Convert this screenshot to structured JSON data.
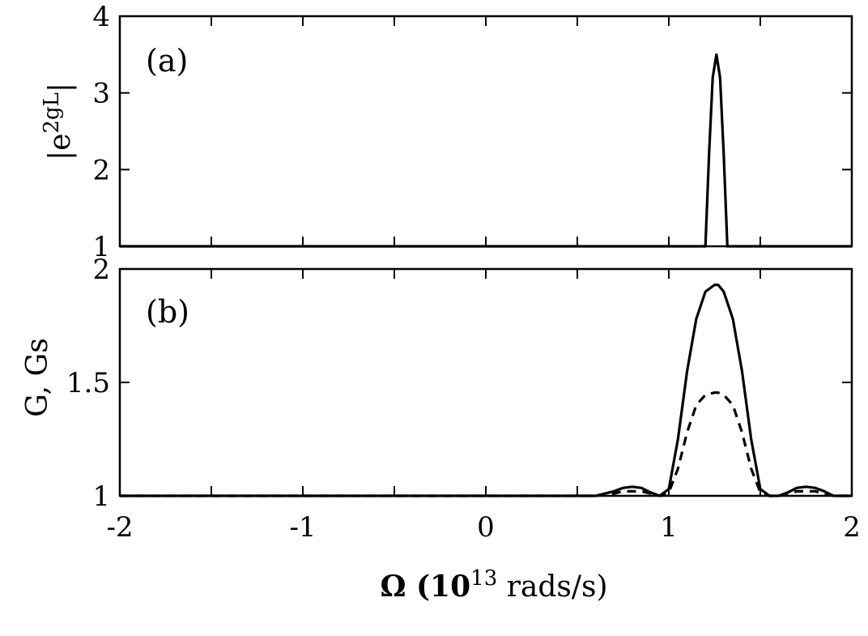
{
  "chart_data": [
    {
      "type": "line",
      "panel_label": "(a)",
      "ylabel": "|e2gL|",
      "ylabel_parts": {
        "base": "|e",
        "sup": "2gL",
        "tail": "|"
      },
      "xlim": [
        -2,
        2
      ],
      "ylim": [
        1,
        4
      ],
      "yticks": [
        1,
        2,
        3,
        4
      ],
      "xticks": [
        -2,
        -1,
        0,
        1,
        2
      ],
      "grid": false,
      "series": [
        {
          "style": "solid",
          "x": [
            -2.0,
            0.3,
            1.15,
            1.2,
            1.22,
            1.24,
            1.26,
            1.28,
            1.3,
            1.32,
            1.34,
            2.0
          ],
          "y": [
            1.0,
            1.0,
            1.0,
            1.0,
            2.2,
            3.2,
            3.5,
            3.2,
            2.2,
            1.0,
            1.0,
            1.0
          ]
        }
      ]
    },
    {
      "type": "line",
      "panel_label": "(b)",
      "ylabel": "G, Gs",
      "xlabel": "Ω (10",
      "xlabel_sup": "13",
      "xlabel_tail": " rads/s)",
      "xlim": [
        -2,
        2
      ],
      "ylim": [
        1,
        2
      ],
      "yticks": [
        1,
        1.5,
        2
      ],
      "ytick_labels": [
        "1",
        "1.5",
        "2"
      ],
      "xticks": [
        -2,
        -1,
        0,
        1,
        2
      ],
      "xtick_labels": [
        "-2",
        "-1",
        "0",
        "1",
        "2"
      ],
      "grid": false,
      "series": [
        {
          "style": "solid",
          "x": [
            -2.0,
            0.4,
            0.6,
            0.7,
            0.75,
            0.8,
            0.85,
            0.9,
            0.95,
            1.0,
            1.05,
            1.1,
            1.15,
            1.2,
            1.25,
            1.27,
            1.3,
            1.35,
            1.4,
            1.45,
            1.5,
            1.55,
            1.6,
            1.65,
            1.7,
            1.75,
            1.8,
            1.85,
            1.9,
            2.0
          ],
          "y": [
            1.0,
            1.0,
            1.0,
            1.02,
            1.035,
            1.04,
            1.035,
            1.015,
            1.0,
            1.03,
            1.25,
            1.55,
            1.78,
            1.9,
            1.93,
            1.93,
            1.9,
            1.78,
            1.55,
            1.25,
            1.03,
            1.0,
            1.0,
            1.015,
            1.035,
            1.04,
            1.035,
            1.02,
            1.0,
            1.0
          ]
        },
        {
          "style": "dashed",
          "x": [
            -2.0,
            0.4,
            0.6,
            0.7,
            0.75,
            0.8,
            0.85,
            0.9,
            0.95,
            1.0,
            1.05,
            1.1,
            1.15,
            1.2,
            1.25,
            1.27,
            1.3,
            1.35,
            1.4,
            1.45,
            1.5,
            1.55,
            1.6,
            1.65,
            1.7,
            1.75,
            1.8,
            1.85,
            1.9,
            2.0
          ],
          "y": [
            1.0,
            1.0,
            1.0,
            1.01,
            1.02,
            1.02,
            1.02,
            1.01,
            1.0,
            1.015,
            1.12,
            1.28,
            1.4,
            1.445,
            1.455,
            1.455,
            1.445,
            1.4,
            1.28,
            1.12,
            1.015,
            1.0,
            1.0,
            1.01,
            1.02,
            1.02,
            1.02,
            1.01,
            1.0,
            1.0
          ]
        }
      ]
    }
  ]
}
